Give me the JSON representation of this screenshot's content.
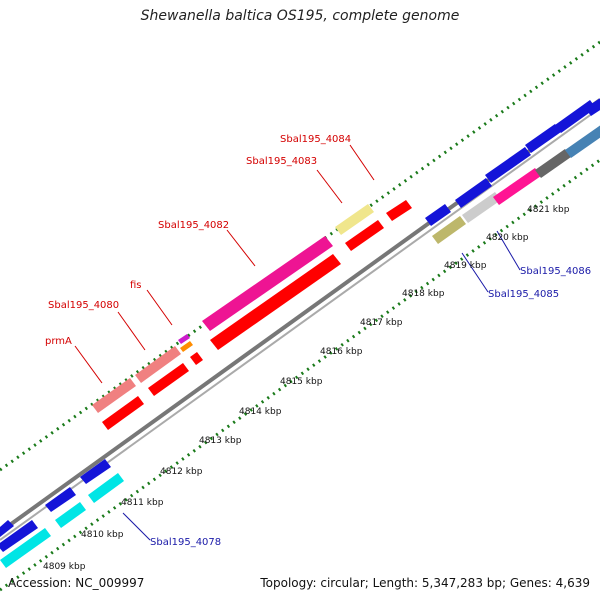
{
  "header": {
    "title": "Shewanella baltica OS195, complete genome"
  },
  "footer": {
    "accession": "Accession: NC_009997",
    "summary": "Topology: circular; Length: 5,347,283 bp; Genes: 4,639"
  },
  "ticks": [
    "4809 kbp",
    "4810 kbp",
    "4811 kbp",
    "4812 kbp",
    "4813 kbp",
    "4814 kbp",
    "4815 kbp",
    "4816 kbp",
    "4817 kbp",
    "4818 kbp",
    "4819 kbp",
    "4820 kbp",
    "4821 kbp"
  ],
  "gene_labels": {
    "forward": [
      "prmA",
      "Sbal195_4080",
      "fis",
      "Sbal195_4082",
      "Sbal195_4083",
      "Sbal195_4084"
    ],
    "reverse": [
      "Sbal195_4078",
      "Sbal195_4085",
      "Sbal195_4086"
    ]
  },
  "colors": {
    "backbone": "#888888",
    "gc_skew_dots": "#1a7a1a",
    "forward_label": "#d40000",
    "reverse_label": "#1a1aa8"
  }
}
